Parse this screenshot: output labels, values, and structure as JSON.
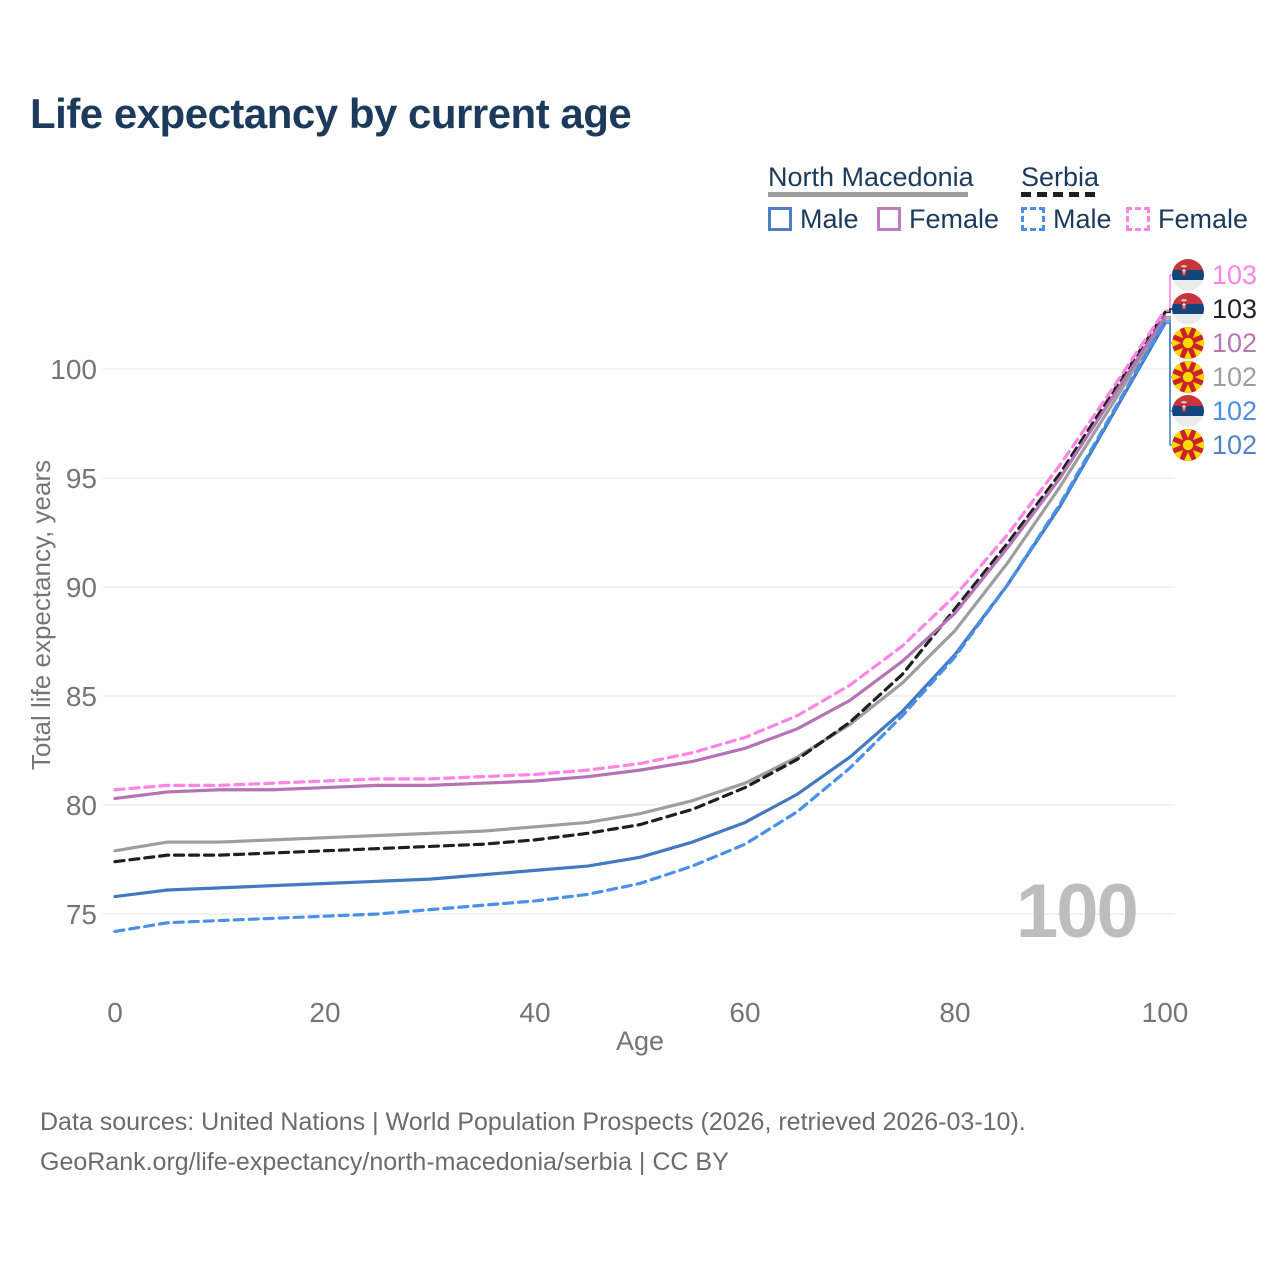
{
  "title": "Life expectancy by current age",
  "legend": {
    "groups": [
      {
        "label": "North Macedonia",
        "line_style": "solid",
        "color": "#9e9e9e"
      },
      {
        "label": "Serbia",
        "line_style": "dashed",
        "color": "#1f1f1f"
      }
    ],
    "items": [
      {
        "label": "Male",
        "country": "North Macedonia",
        "color": "#4f7fc2",
        "dashed": false
      },
      {
        "label": "Female",
        "country": "North Macedonia",
        "color": "#bd7ebe",
        "dashed": false
      },
      {
        "label": "Male",
        "country": "Serbia",
        "color": "#4a90e8",
        "dashed": true
      },
      {
        "label": "Female",
        "country": "Serbia",
        "color": "#ff85e5",
        "dashed": true
      }
    ]
  },
  "watermark": "100",
  "footer": {
    "line1": "Data sources: United Nations | World Population Prospects (2026, retrieved 2026-03-10).",
    "line2": "GeoRank.org/life-expectancy/north-macedonia/serbia | CC BY"
  },
  "chart_data": {
    "type": "line",
    "title": "Life expectancy by current age",
    "xlabel": "Age",
    "ylabel": "Total life expectancy, years",
    "xlim": [
      0,
      100
    ],
    "ylim": [
      73,
      104
    ],
    "x_ticks": [
      0,
      20,
      40,
      60,
      80,
      100
    ],
    "y_ticks": [
      75,
      80,
      85,
      90,
      95,
      100
    ],
    "grid": "horizontal",
    "x": [
      0,
      5,
      10,
      15,
      20,
      25,
      30,
      35,
      40,
      45,
      50,
      55,
      60,
      65,
      70,
      75,
      80,
      85,
      90,
      95,
      100
    ],
    "series": [
      {
        "name": "North Macedonia Total",
        "country": "North Macedonia",
        "sex": "Total",
        "color": "#9e9e9e",
        "dashed": false,
        "values": [
          77.9,
          78.3,
          78.3,
          78.4,
          78.5,
          78.6,
          78.7,
          78.8,
          79.0,
          79.2,
          79.6,
          80.2,
          81.0,
          82.2,
          83.7,
          85.6,
          88.0,
          91.1,
          94.6,
          98.4,
          102.3
        ]
      },
      {
        "name": "Serbia Total",
        "country": "Serbia",
        "sex": "Total",
        "color": "#1f1f1f",
        "dashed": true,
        "values": [
          77.4,
          77.7,
          77.7,
          77.8,
          77.9,
          78.0,
          78.1,
          78.2,
          78.4,
          78.7,
          79.1,
          79.8,
          80.8,
          82.1,
          83.8,
          86.0,
          89.0,
          92.0,
          95.2,
          98.9,
          102.6
        ]
      },
      {
        "name": "North Macedonia Female",
        "country": "North Macedonia",
        "sex": "Female",
        "color": "#b473b4",
        "dashed": false,
        "values": [
          80.3,
          80.6,
          80.7,
          80.7,
          80.8,
          80.9,
          80.9,
          81.0,
          81.1,
          81.3,
          81.6,
          82.0,
          82.6,
          83.5,
          84.8,
          86.6,
          88.8,
          91.8,
          95.0,
          98.7,
          102.4
        ]
      },
      {
        "name": "Serbia Female",
        "country": "Serbia",
        "sex": "Female",
        "color": "#ff85e5",
        "dashed": true,
        "values": [
          80.7,
          80.9,
          80.9,
          81.0,
          81.1,
          81.2,
          81.2,
          81.3,
          81.4,
          81.6,
          81.9,
          82.4,
          83.1,
          84.1,
          85.5,
          87.3,
          89.6,
          92.4,
          95.6,
          99.1,
          102.7
        ]
      },
      {
        "name": "North Macedonia Male",
        "country": "North Macedonia",
        "sex": "Male",
        "color": "#4379bf",
        "dashed": false,
        "values": [
          75.8,
          76.1,
          76.2,
          76.3,
          76.4,
          76.5,
          76.6,
          76.8,
          77.0,
          77.2,
          77.6,
          78.3,
          79.2,
          80.5,
          82.2,
          84.3,
          86.9,
          90.1,
          93.7,
          97.9,
          102.1
        ]
      },
      {
        "name": "Serbia Male",
        "country": "Serbia",
        "sex": "Male",
        "color": "#4a90e8",
        "dashed": true,
        "values": [
          74.2,
          74.6,
          74.7,
          74.8,
          74.9,
          75.0,
          75.2,
          75.4,
          75.6,
          75.9,
          76.4,
          77.2,
          78.2,
          79.7,
          81.7,
          84.1,
          86.8,
          90.1,
          93.8,
          98.0,
          102.2
        ]
      }
    ],
    "end_labels": [
      {
        "value": "103",
        "flag": "rs",
        "country": "Serbia",
        "sex": "Female",
        "color": "#ff85e5",
        "series": 3
      },
      {
        "value": "103",
        "flag": "rs",
        "country": "Serbia",
        "sex": "Total",
        "color": "#222222",
        "series": 1
      },
      {
        "value": "102",
        "flag": "mk",
        "country": "North Macedonia",
        "sex": "Female",
        "color": "#b678b6",
        "series": 2
      },
      {
        "value": "102",
        "flag": "mk",
        "country": "North Macedonia",
        "sex": "Total",
        "color": "#9e9e9e",
        "series": 0
      },
      {
        "value": "102",
        "flag": "rs",
        "country": "Serbia",
        "sex": "Male",
        "color": "#4a90e8",
        "series": 5
      },
      {
        "value": "102",
        "flag": "mk",
        "country": "North Macedonia",
        "sex": "Male",
        "color": "#4f86c6",
        "series": 4
      }
    ]
  }
}
